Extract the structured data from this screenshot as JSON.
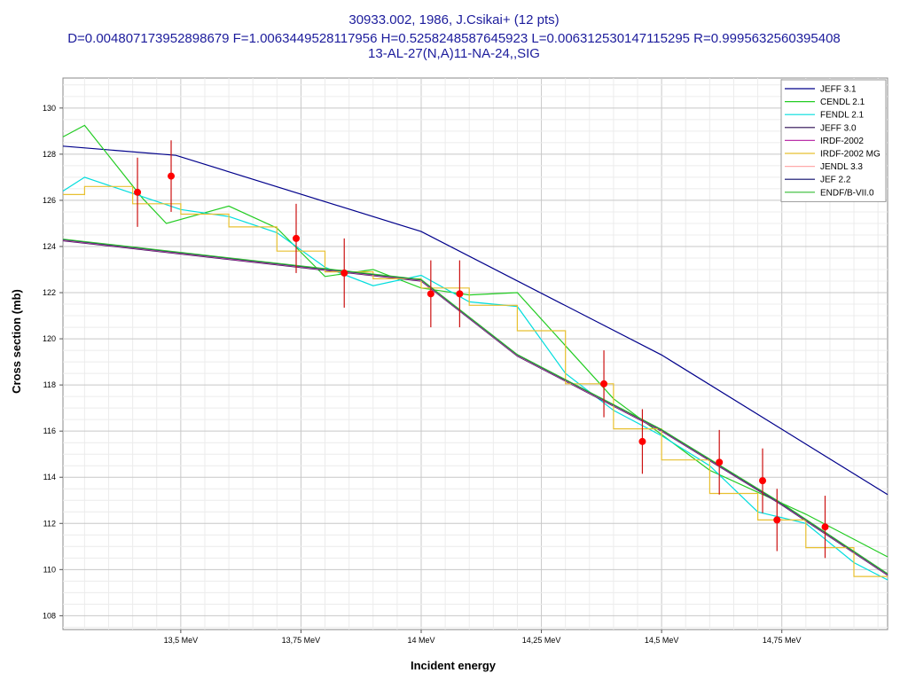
{
  "title": {
    "line1": "30933.002, 1986, J.Csikai+ (12 pts)",
    "line2": "D=0.004807173952898679 F=1.0063449528117956 H=0.5258248587645923 L=0.006312530147115295 R=0.9995632560395408",
    "line3": "13-AL-27(N,A)11-NA-24,,SIG"
  },
  "chart_data": {
    "type": "line",
    "xlabel": "Incident energy",
    "ylabel": "Cross section (mb)",
    "xlim": [
      13.255,
      14.97
    ],
    "ylim": [
      107.4,
      131.3
    ],
    "x_ticks": [
      {
        "value": 13.5,
        "label": "13,5 MeV"
      },
      {
        "value": 13.75,
        "label": "13,75 MeV"
      },
      {
        "value": 14.0,
        "label": "14 MeV"
      },
      {
        "value": 14.25,
        "label": "14,25 MeV"
      },
      {
        "value": 14.5,
        "label": "14,5 MeV"
      },
      {
        "value": 14.75,
        "label": "14,75 MeV"
      }
    ],
    "y_ticks": [
      108,
      110,
      112,
      114,
      116,
      118,
      120,
      122,
      124,
      126,
      128,
      130
    ],
    "grid": true,
    "legend_position": "top-right",
    "series": [
      {
        "name": "JEFF 3.1",
        "color": "#00008b",
        "step": false,
        "points": [
          [
            13.255,
            128.35
          ],
          [
            13.49,
            127.95
          ],
          [
            14.0,
            124.65
          ],
          [
            14.5,
            119.3
          ],
          [
            14.97,
            113.25
          ]
        ]
      },
      {
        "name": "CENDL 2.1",
        "color": "#22cc22",
        "step": false,
        "points": [
          [
            13.255,
            128.75
          ],
          [
            13.3,
            129.25
          ],
          [
            13.42,
            126.1
          ],
          [
            13.47,
            125.0
          ],
          [
            13.6,
            125.75
          ],
          [
            13.7,
            124.8
          ],
          [
            13.8,
            122.7
          ],
          [
            13.9,
            123.0
          ],
          [
            14.0,
            122.2
          ],
          [
            14.1,
            121.9
          ],
          [
            14.2,
            122.0
          ],
          [
            14.4,
            117.4
          ],
          [
            14.6,
            114.3
          ],
          [
            14.8,
            112.4
          ],
          [
            14.97,
            110.55
          ]
        ]
      },
      {
        "name": "FENDL 2.1",
        "color": "#00dddd",
        "step": false,
        "points": [
          [
            13.255,
            126.4
          ],
          [
            13.3,
            127.0
          ],
          [
            13.4,
            126.3
          ],
          [
            13.5,
            125.6
          ],
          [
            13.6,
            125.3
          ],
          [
            13.7,
            124.6
          ],
          [
            13.8,
            123.1
          ],
          [
            13.9,
            122.3
          ],
          [
            14.0,
            122.75
          ],
          [
            14.1,
            121.6
          ],
          [
            14.2,
            121.4
          ],
          [
            14.3,
            118.5
          ],
          [
            14.4,
            116.9
          ],
          [
            14.5,
            115.8
          ],
          [
            14.6,
            114.5
          ],
          [
            14.7,
            112.5
          ],
          [
            14.8,
            112.0
          ],
          [
            14.9,
            110.3
          ],
          [
            14.97,
            109.55
          ]
        ]
      },
      {
        "name": "JEFF 3.0",
        "color": "#2a0a50",
        "step": false,
        "points": [
          [
            13.255,
            124.25
          ],
          [
            14.0,
            122.5
          ],
          [
            14.2,
            119.25
          ],
          [
            14.5,
            116.0
          ],
          [
            14.75,
            112.8
          ],
          [
            14.97,
            109.75
          ]
        ]
      },
      {
        "name": "IRDF-2002",
        "color": "#bb33aa",
        "step": false,
        "points": [
          [
            13.255,
            124.27
          ],
          [
            14.0,
            122.52
          ],
          [
            14.2,
            119.27
          ],
          [
            14.5,
            116.02
          ],
          [
            14.75,
            112.82
          ],
          [
            14.97,
            109.77
          ]
        ]
      },
      {
        "name": "IRDF-2002 MG",
        "color": "#e8c030",
        "step": true,
        "points": [
          [
            13.255,
            126.25
          ],
          [
            13.3,
            126.6
          ],
          [
            13.4,
            125.85
          ],
          [
            13.5,
            125.4
          ],
          [
            13.6,
            124.85
          ],
          [
            13.7,
            123.8
          ],
          [
            13.8,
            122.9
          ],
          [
            13.9,
            122.6
          ],
          [
            14.0,
            122.2
          ],
          [
            14.1,
            121.45
          ],
          [
            14.2,
            120.35
          ],
          [
            14.3,
            118.05
          ],
          [
            14.4,
            116.1
          ],
          [
            14.5,
            114.75
          ],
          [
            14.6,
            113.3
          ],
          [
            14.7,
            112.15
          ],
          [
            14.8,
            110.95
          ],
          [
            14.9,
            109.7
          ],
          [
            14.97,
            109.7
          ]
        ]
      },
      {
        "name": "JENDL 3.3",
        "color": "#ffaaaa",
        "step": false,
        "points": [
          [
            13.255,
            124.29
          ],
          [
            14.0,
            122.54
          ],
          [
            14.2,
            119.29
          ],
          [
            14.5,
            116.04
          ],
          [
            14.75,
            112.84
          ],
          [
            14.97,
            109.79
          ]
        ]
      },
      {
        "name": "JEF 2.2",
        "color": "#0a0a6a",
        "step": false,
        "points": [
          [
            13.255,
            124.3
          ],
          [
            14.0,
            122.55
          ],
          [
            14.2,
            119.3
          ],
          [
            14.5,
            116.05
          ],
          [
            14.75,
            112.85
          ],
          [
            14.97,
            109.8
          ]
        ]
      },
      {
        "name": "ENDF/B-VII.0",
        "color": "#33bb33",
        "step": false,
        "points": [
          [
            13.255,
            124.32
          ],
          [
            14.0,
            122.57
          ],
          [
            14.2,
            119.32
          ],
          [
            14.5,
            116.07
          ],
          [
            14.75,
            112.87
          ],
          [
            14.97,
            109.82
          ]
        ]
      }
    ],
    "experimental": {
      "color": "#ff0000",
      "errbar_color": "#cc1111",
      "points": [
        {
          "x": 13.41,
          "y": 126.35,
          "err": 1.5
        },
        {
          "x": 13.48,
          "y": 127.05,
          "err": 1.55
        },
        {
          "x": 13.74,
          "y": 124.35,
          "err": 1.5
        },
        {
          "x": 13.84,
          "y": 122.85,
          "err": 1.5
        },
        {
          "x": 14.02,
          "y": 121.95,
          "err": 1.45
        },
        {
          "x": 14.08,
          "y": 121.95,
          "err": 1.45
        },
        {
          "x": 14.38,
          "y": 118.05,
          "err": 1.45
        },
        {
          "x": 14.46,
          "y": 115.55,
          "err": 1.4
        },
        {
          "x": 14.62,
          "y": 114.65,
          "err": 1.4
        },
        {
          "x": 14.71,
          "y": 113.85,
          "err": 1.4
        },
        {
          "x": 14.74,
          "y": 112.15,
          "err": 1.35
        },
        {
          "x": 14.84,
          "y": 111.85,
          "err": 1.35
        }
      ]
    }
  }
}
